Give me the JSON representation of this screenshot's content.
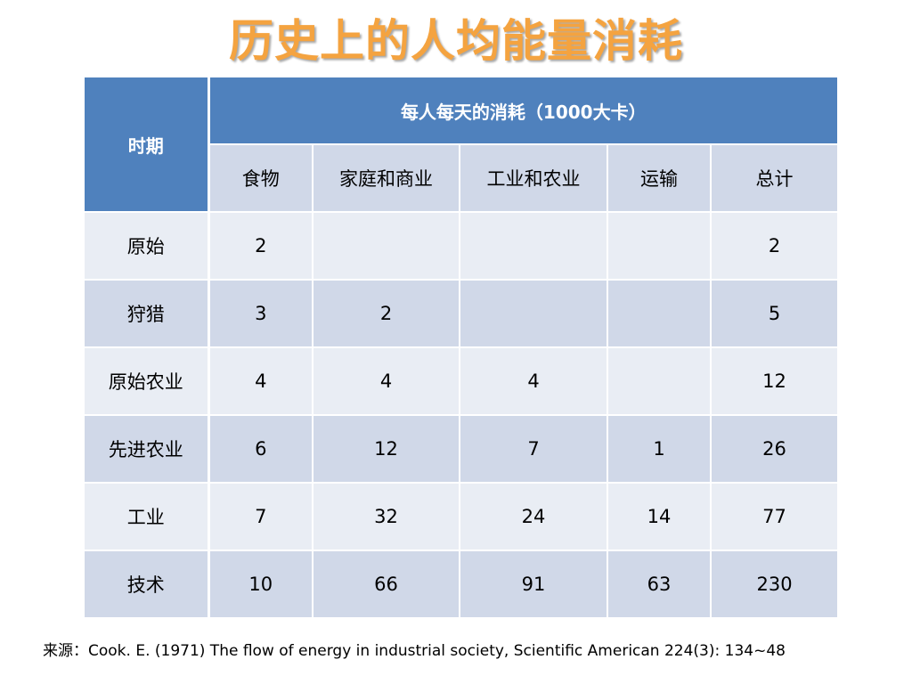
{
  "title": "历史上的人均能量消耗",
  "table": {
    "period_header": "时期",
    "group_header": "每人每天的消耗（1000大卡）",
    "columns": [
      "食物",
      "家庭和商业",
      "工业和农业",
      "运输",
      "总计"
    ],
    "rows": [
      {
        "period": "原始",
        "cells": [
          "2",
          "",
          "",
          "",
          "2"
        ]
      },
      {
        "period": "狩猎",
        "cells": [
          "3",
          "2",
          "",
          "",
          "5"
        ]
      },
      {
        "period": "原始农业",
        "cells": [
          "4",
          "4",
          "4",
          "",
          "12"
        ]
      },
      {
        "period": "先进农业",
        "cells": [
          "6",
          "12",
          "7",
          "1",
          "26"
        ]
      },
      {
        "period": "工业",
        "cells": [
          "7",
          "32",
          "24",
          "14",
          "77"
        ]
      },
      {
        "period": "技术",
        "cells": [
          "10",
          "66",
          "91",
          "63",
          "230"
        ]
      }
    ]
  },
  "source": {
    "label": "来源：",
    "citation": "Cook. E. (1971)  The flow of energy in industrial society, Scientific American  224(3): 134~48"
  },
  "colors": {
    "title": "#F4A340",
    "header": "#4F81BD",
    "row_dark": "#D0D8E8",
    "row_light": "#E9EDF4"
  }
}
